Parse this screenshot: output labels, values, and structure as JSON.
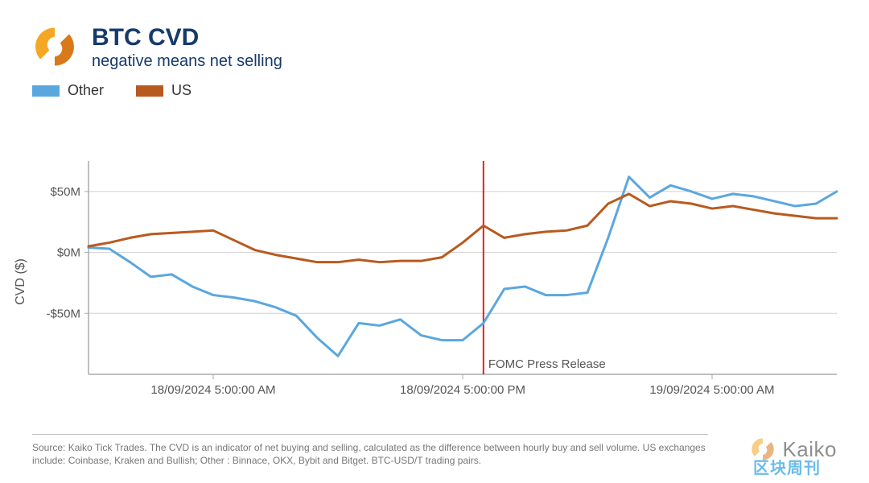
{
  "header": {
    "title": "BTC CVD",
    "subtitle": "negative means net selling",
    "title_color": "#163a6b",
    "title_fontsize": 30,
    "subtitle_fontsize": 20,
    "logo_colors": {
      "left": "#f5a623",
      "right": "#d87a1a"
    }
  },
  "legend": {
    "items": [
      {
        "label": "Other",
        "color": "#5aa7e0"
      },
      {
        "label": "US",
        "color": "#b85a1e"
      }
    ],
    "swatch_w": 34,
    "swatch_h": 14,
    "fontsize": 18
  },
  "chart": {
    "type": "line",
    "background_color": "#ffffff",
    "plot_border_color": "#aaaaaa",
    "grid_color": "#d0d0d0",
    "ylabel": "CVD ($)",
    "label_fontsize": 16,
    "label_color": "#555555",
    "ylim": [
      -100,
      75
    ],
    "yticks": [
      -50,
      0,
      50
    ],
    "ytick_labels": [
      "-$50M",
      "$0M",
      "$50M"
    ],
    "xlim": [
      0,
      36
    ],
    "xticks": [
      6,
      18,
      30
    ],
    "xtick_labels": [
      "18/09/2024 5:00:00 AM",
      "18/09/2024 5:00:00 PM",
      "19/09/2024 5:00:00 AM"
    ],
    "tick_fontsize": 15,
    "tick_color": "#555555",
    "line_width": 3,
    "annotation": {
      "x": 19,
      "label": "FOMC Press Release",
      "label_fontsize": 15,
      "label_color": "#555555",
      "line_color": "#e02020",
      "line_width": 2
    },
    "series": [
      {
        "name": "Other",
        "color": "#5aa7e0",
        "x": [
          0,
          1,
          2,
          3,
          4,
          5,
          6,
          7,
          8,
          9,
          10,
          11,
          12,
          13,
          14,
          15,
          16,
          17,
          18,
          19,
          20,
          21,
          22,
          23,
          24,
          25,
          26,
          27,
          28,
          29,
          30,
          31,
          32,
          33,
          34,
          35,
          36
        ],
        "y": [
          4,
          3,
          -8,
          -20,
          -18,
          -28,
          -35,
          -37,
          -40,
          -45,
          -52,
          -70,
          -85,
          -58,
          -60,
          -55,
          -68,
          -72,
          -72,
          -58,
          -30,
          -28,
          -35,
          -35,
          -33,
          12,
          62,
          45,
          55,
          50,
          44,
          48,
          46,
          42,
          38,
          40,
          50
        ]
      },
      {
        "name": "US",
        "color": "#b85a1e",
        "x": [
          0,
          1,
          2,
          3,
          4,
          5,
          6,
          7,
          8,
          9,
          10,
          11,
          12,
          13,
          14,
          15,
          16,
          17,
          18,
          19,
          20,
          21,
          22,
          23,
          24,
          25,
          26,
          27,
          28,
          29,
          30,
          31,
          32,
          33,
          34,
          35,
          36
        ],
        "y": [
          5,
          8,
          12,
          15,
          16,
          17,
          18,
          10,
          2,
          -2,
          -5,
          -8,
          -8,
          -6,
          -8,
          -7,
          -7,
          -4,
          8,
          22,
          12,
          15,
          17,
          18,
          22,
          40,
          48,
          38,
          42,
          40,
          36,
          38,
          35,
          32,
          30,
          28,
          28
        ]
      }
    ]
  },
  "footnote": {
    "text": "Source: Kaiko Tick Trades. The CVD is an indicator of net buying and selling, calculated as the difference between hourly buy and sell volume.  US exchanges include: Coinbase, Kraken and Bullish; Other : Binnace, OKX, Bybit and Bitget. BTC-USD/T trading pairs.",
    "fontsize": 12,
    "color": "#777777"
  },
  "brand": {
    "name": "Kaiko",
    "fontsize": 26
  },
  "watermark": {
    "text": "区块周刊",
    "color": "#2aa0e0"
  }
}
